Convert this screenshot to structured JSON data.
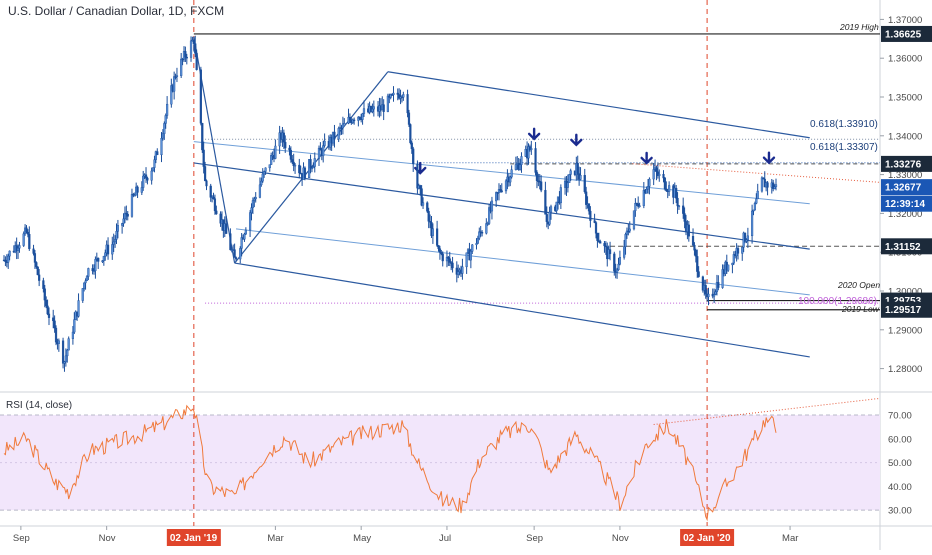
{
  "title": "U.S. Dollar / Canadian Dollar, 1D, FXCM",
  "colors": {
    "candle": "#1b4f9c",
    "channel_outer": "#2c5aa0",
    "channel_inner": "#6f9fd8",
    "vline": "#e0452b",
    "rsi_line": "#f07a3c",
    "rsi_band": "#f2e6fb",
    "badge_dark": "#1c2a3a",
    "badge_blue": "#1b57b5",
    "badge_red": "#e0452b"
  },
  "price_axis": {
    "min": 1.275,
    "max": 1.375,
    "ticks": [
      "1.37000",
      "1.36000",
      "1.35000",
      "1.34000",
      "1.33000",
      "1.32000",
      "1.31000",
      "1.30000",
      "1.29000",
      "1.28000"
    ],
    "tick_values": [
      1.37,
      1.36,
      1.35,
      1.34,
      1.33,
      1.32,
      1.31,
      1.3,
      1.29,
      1.28
    ]
  },
  "price_badges": [
    {
      "text": "1.36625",
      "value": 1.36625,
      "style": "dark"
    },
    {
      "text": "1.33276",
      "value": 1.33276,
      "style": "dark"
    },
    {
      "text": "1.32677",
      "value": 1.32677,
      "style": "blue"
    },
    {
      "text": "12:39:14",
      "value": 1.3225,
      "style": "blue"
    },
    {
      "text": "1.31152",
      "value": 1.31152,
      "style": "dark"
    },
    {
      "text": "1.29753",
      "value": 1.29753,
      "style": "dark"
    },
    {
      "text": "1.29517",
      "value": 1.29517,
      "style": "dark"
    }
  ],
  "annotations": {
    "high_label": "2019 High",
    "open_label": "2020 Open",
    "low_label": "2019 Low",
    "fib_upper": "0.618(1.33910)",
    "fib_lower": "0.618(1.33307)",
    "fib_100": "100.000(1.29686)"
  },
  "rsi": {
    "title": "RSI (14, close)",
    "ticks": [
      "70.00",
      "60.00",
      "50.00",
      "40.00",
      "30.00"
    ],
    "tick_values": [
      70,
      60,
      50,
      40,
      30
    ],
    "min": 25,
    "max": 78
  },
  "x_axis": {
    "labels": [
      "Sep",
      "Nov",
      "Mar",
      "May",
      "Jul",
      "Sep",
      "Nov",
      "Mar"
    ],
    "label_dates": [
      "2018-09",
      "2018-11",
      "2019-03",
      "2019-05",
      "2019-07",
      "2019-09",
      "2019-11",
      "2020-03"
    ],
    "highlight_labels": [
      {
        "text": "02 Jan '19",
        "date": "2019-01-02"
      },
      {
        "text": "02 Jan '20",
        "date": "2020-01-02"
      }
    ]
  },
  "chart_data": {
    "type": "candlestick",
    "title": "U.S. Dollar / Canadian Dollar, 1D, FXCM",
    "x_range": [
      "2018-08-20",
      "2020-02-20"
    ],
    "ylim": [
      1.275,
      1.375
    ],
    "price_path": [
      [
        "2018-08-20",
        1.308
      ],
      [
        "2018-09-05",
        1.315
      ],
      [
        "2018-09-20",
        1.295
      ],
      [
        "2018-10-02",
        1.282
      ],
      [
        "2018-10-18",
        1.305
      ],
      [
        "2018-11-05",
        1.312
      ],
      [
        "2018-11-20",
        1.324
      ],
      [
        "2018-12-05",
        1.333
      ],
      [
        "2018-12-20",
        1.356
      ],
      [
        "2019-01-02",
        1.365
      ],
      [
        "2019-01-10",
        1.328
      ],
      [
        "2019-01-20",
        1.32
      ],
      [
        "2019-01-31",
        1.308
      ],
      [
        "2019-02-15",
        1.325
      ],
      [
        "2019-03-05",
        1.34
      ],
      [
        "2019-03-20",
        1.33
      ],
      [
        "2019-04-05",
        1.337
      ],
      [
        "2019-04-25",
        1.345
      ],
      [
        "2019-05-15",
        1.347
      ],
      [
        "2019-05-31",
        1.352
      ],
      [
        "2019-06-10",
        1.327
      ],
      [
        "2019-06-25",
        1.31
      ],
      [
        "2019-07-10",
        1.305
      ],
      [
        "2019-07-25",
        1.315
      ],
      [
        "2019-08-10",
        1.328
      ],
      [
        "2019-08-30",
        1.337
      ],
      [
        "2019-09-10",
        1.318
      ],
      [
        "2019-09-20",
        1.325
      ],
      [
        "2019-10-01",
        1.332
      ],
      [
        "2019-10-15",
        1.315
      ],
      [
        "2019-10-30",
        1.305
      ],
      [
        "2019-11-10",
        1.32
      ],
      [
        "2019-11-25",
        1.331
      ],
      [
        "2019-12-10",
        1.325
      ],
      [
        "2019-12-20",
        1.315
      ],
      [
        "2020-01-02",
        1.297
      ],
      [
        "2020-01-15",
        1.306
      ],
      [
        "2020-01-31",
        1.315
      ],
      [
        "2020-02-10",
        1.328
      ],
      [
        "2020-02-20",
        1.3268
      ]
    ],
    "horizontal_levels": [
      {
        "label": "2019 High",
        "value": 1.36625
      },
      {
        "label": "1.33276",
        "value": 1.33276
      },
      {
        "label": "1.31152",
        "value": 1.31152
      },
      {
        "label": "2020 Open",
        "value": 1.29753
      },
      {
        "label": "2019 Low",
        "value": 1.29517
      },
      {
        "label": "0.618(1.33910)",
        "value": 1.3391
      },
      {
        "label": "0.618(1.33307)",
        "value": 1.33307
      },
      {
        "label": "100.000(1.29686)",
        "value": 1.29686
      }
    ],
    "down_arrows": [
      "2019-06-12",
      "2019-09-01",
      "2019-10-01",
      "2019-11-20",
      "2020-02-15"
    ],
    "vertical_markers": [
      "2019-01-02",
      "2020-01-02"
    ],
    "rsi_series": [
      [
        "2018-08-20",
        55
      ],
      [
        "2018-09-05",
        60
      ],
      [
        "2018-09-25",
        42
      ],
      [
        "2018-10-05",
        38
      ],
      [
        "2018-10-20",
        55
      ],
      [
        "2018-11-05",
        58
      ],
      [
        "2018-11-25",
        62
      ],
      [
        "2018-12-10",
        66
      ],
      [
        "2019-01-02",
        74
      ],
      [
        "2019-01-12",
        40
      ],
      [
        "2019-01-31",
        36
      ],
      [
        "2019-02-20",
        52
      ],
      [
        "2019-03-08",
        61
      ],
      [
        "2019-03-25",
        50
      ],
      [
        "2019-04-15",
        58
      ],
      [
        "2019-05-01",
        62
      ],
      [
        "2019-05-30",
        66
      ],
      [
        "2019-06-12",
        48
      ],
      [
        "2019-06-28",
        34
      ],
      [
        "2019-07-12",
        32
      ],
      [
        "2019-07-25",
        52
      ],
      [
        "2019-08-10",
        62
      ],
      [
        "2019-08-30",
        66
      ],
      [
        "2019-09-12",
        46
      ],
      [
        "2019-10-01",
        62
      ],
      [
        "2019-10-20",
        46
      ],
      [
        "2019-11-01",
        33
      ],
      [
        "2019-11-20",
        58
      ],
      [
        "2019-12-05",
        66
      ],
      [
        "2019-12-20",
        50
      ],
      [
        "2020-01-02",
        28
      ],
      [
        "2020-01-15",
        40
      ],
      [
        "2020-01-31",
        55
      ],
      [
        "2020-02-12",
        68
      ],
      [
        "2020-02-20",
        66
      ]
    ]
  }
}
